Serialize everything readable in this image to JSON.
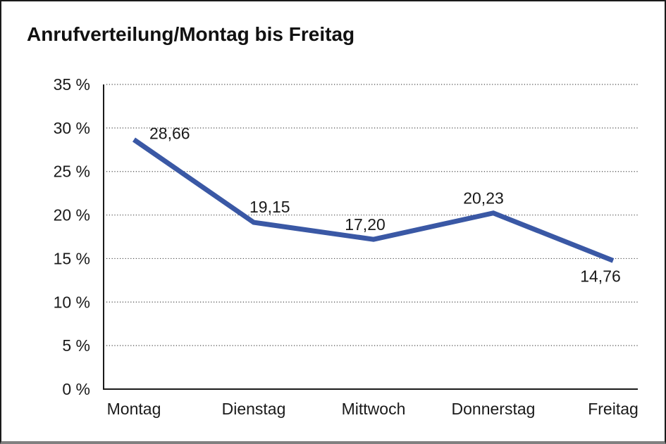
{
  "window": {
    "background": "#ffffff",
    "frame_border_color": "#1a1a1a",
    "frame_shadow_color": "#808080"
  },
  "chart_data": {
    "type": "line",
    "title": "Anrufverteilung/Montag bis Freitag",
    "categories": [
      "Montag",
      "Dienstag",
      "Mittwoch",
      "Donnerstag",
      "Freitag"
    ],
    "series": [
      {
        "name": "Anrufverteilung",
        "values": [
          28.66,
          19.15,
          17.2,
          20.23,
          14.76
        ]
      }
    ],
    "data_labels": [
      "28,66",
      "19,15",
      "17,20",
      "20,23",
      "14,76"
    ],
    "xlabel": "",
    "ylabel": "",
    "ylim": [
      0,
      35
    ],
    "y_ticks": [
      {
        "value": 0,
        "label": "0 %"
      },
      {
        "value": 5,
        "label": "5 %"
      },
      {
        "value": 10,
        "label": "10 %"
      },
      {
        "value": 15,
        "label": "15 %"
      },
      {
        "value": 20,
        "label": "20 %"
      },
      {
        "value": 25,
        "label": "25 %"
      },
      {
        "value": 30,
        "label": "30 %"
      },
      {
        "value": 35,
        "label": "35 %"
      }
    ],
    "grid": "horizontal-dotted",
    "legend_position": "none",
    "colors": {
      "line": "#3A58A5",
      "axis": "#1a1a1a",
      "gridline": "#4a4a4a",
      "text": "#1a1a1a"
    }
  }
}
